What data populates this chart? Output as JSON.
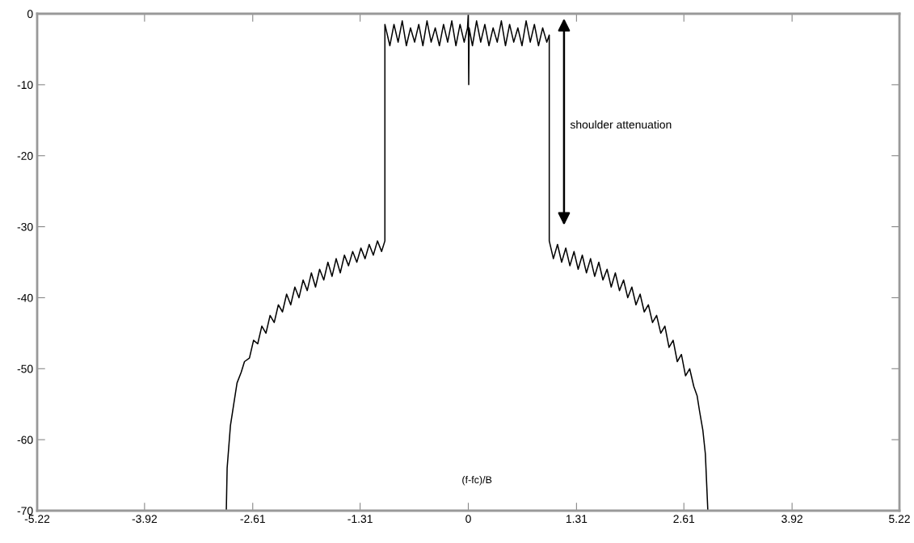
{
  "chart_data": {
    "type": "line",
    "xlabel": "(f-fc)/B",
    "xlim": [
      -5.22,
      5.22
    ],
    "xticks": [
      -5.22,
      -3.92,
      -2.61,
      -1.31,
      0,
      1.31,
      2.61,
      3.92,
      5.22
    ],
    "ylim": [
      -70,
      0
    ],
    "yticks": [
      -70,
      -60,
      -50,
      -40,
      -30,
      -20,
      -10,
      0
    ],
    "grid": false,
    "annotations": [
      "shoulder attenuation"
    ],
    "series": [
      {
        "color": "#000000",
        "x": [
          -2.93,
          -2.92,
          -2.88,
          -2.84,
          -2.8,
          -2.75,
          -2.71,
          -2.65,
          -2.6,
          -2.55,
          -2.5,
          -2.45,
          -2.4,
          -2.35,
          -2.3,
          -2.25,
          -2.2,
          -2.15,
          -2.1,
          -2.05,
          -2.0,
          -1.95,
          -1.9,
          -1.85,
          -1.8,
          -1.75,
          -1.7,
          -1.65,
          -1.6,
          -1.55,
          -1.5,
          -1.45,
          -1.4,
          -1.35,
          -1.3,
          -1.25,
          -1.2,
          -1.15,
          -1.1,
          -1.05,
          -1.01,
          -1.01,
          -0.95,
          -0.9,
          -0.85,
          -0.8,
          -0.75,
          -0.7,
          -0.65,
          -0.6,
          -0.55,
          -0.5,
          -0.45,
          -0.4,
          -0.35,
          -0.3,
          -0.25,
          -0.2,
          -0.15,
          -0.1,
          -0.05,
          -0.01,
          0,
          0.005,
          0.01,
          0.05,
          0.1,
          0.15,
          0.2,
          0.25,
          0.3,
          0.35,
          0.4,
          0.45,
          0.5,
          0.55,
          0.6,
          0.65,
          0.7,
          0.75,
          0.8,
          0.85,
          0.9,
          0.95,
          0.98,
          0.98,
          1.03,
          1.08,
          1.13,
          1.18,
          1.23,
          1.28,
          1.33,
          1.38,
          1.43,
          1.48,
          1.53,
          1.58,
          1.63,
          1.68,
          1.73,
          1.78,
          1.83,
          1.88,
          1.93,
          1.98,
          2.03,
          2.08,
          2.13,
          2.18,
          2.23,
          2.28,
          2.33,
          2.38,
          2.43,
          2.48,
          2.53,
          2.58,
          2.63,
          2.68,
          2.73,
          2.77,
          2.8,
          2.84,
          2.87,
          2.9
        ],
        "values": [
          -70,
          -64,
          -58,
          -55,
          -52,
          -50.5,
          -49,
          -48.5,
          -46,
          -46.5,
          -44,
          -45,
          -42.5,
          -43.5,
          -41,
          -42,
          -39.5,
          -41,
          -38.5,
          -40,
          -37.5,
          -39,
          -36.5,
          -38.5,
          -36,
          -37.5,
          -35,
          -37,
          -34.5,
          -36.5,
          -34,
          -35.5,
          -33.5,
          -35,
          -33,
          -34.5,
          -32.5,
          -34,
          -32,
          -33.5,
          -32,
          -1.5,
          -4.5,
          -1.5,
          -4,
          -1,
          -4.5,
          -2,
          -4,
          -1.5,
          -4.5,
          -1,
          -4,
          -2,
          -4.5,
          -1.5,
          -4,
          -1,
          -4.5,
          -1.5,
          -4,
          -2,
          0,
          -10,
          -2,
          -4.5,
          -1,
          -4,
          -1.5,
          -4.5,
          -2,
          -4,
          -1,
          -4.5,
          -1.5,
          -4,
          -2,
          -4.5,
          -1,
          -4,
          -1.5,
          -4.5,
          -2,
          -4,
          -3,
          -32,
          -34.5,
          -32.5,
          -35,
          -33,
          -35.5,
          -33.5,
          -36,
          -34,
          -36.5,
          -34.5,
          -37,
          -35,
          -37.5,
          -36,
          -38.5,
          -36.5,
          -39,
          -37.5,
          -40,
          -38.5,
          -41,
          -39.5,
          -42,
          -41,
          -43.5,
          -42.5,
          -45,
          -44,
          -47,
          -46,
          -49,
          -48,
          -51,
          -50,
          -52.5,
          -53.8,
          -56,
          -58.7,
          -62,
          -70
        ]
      }
    ]
  }
}
